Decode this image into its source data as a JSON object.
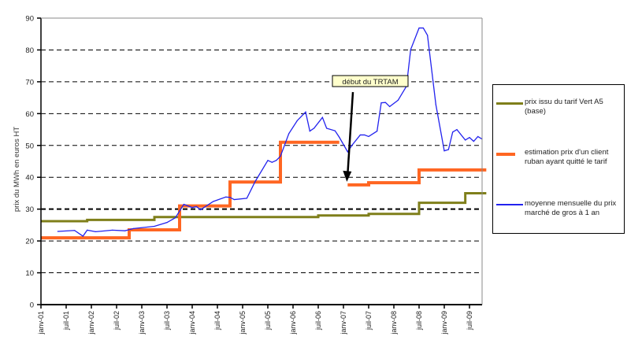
{
  "chart_data": {
    "type": "line",
    "title": "",
    "ylabel": "prix du MWh  en euros HT",
    "xlabel": "",
    "ylim": [
      0,
      90
    ],
    "yticks": [
      0,
      10,
      20,
      30,
      40,
      50,
      60,
      70,
      80,
      90
    ],
    "xlim": [
      "2001-01",
      "2009-11"
    ],
    "xticks": [
      "janv-01",
      "juil-01",
      "janv-02",
      "juil-02",
      "janv-03",
      "juil-03",
      "janv-04",
      "juil-04",
      "janv-05",
      "juil-05",
      "janv-06",
      "juil-06",
      "janv-07",
      "juil-07",
      "janv-08",
      "juil-08",
      "janv-09",
      "juil-09"
    ],
    "grid": "horizontal dashed",
    "legend_placement": "right",
    "series": [
      {
        "name": "prix issu du tarif Vert A5 (base)",
        "color": "#7f7f1a",
        "style": "step",
        "end": "2009-11",
        "steps": [
          [
            "2001-01",
            26.2
          ],
          [
            "2001-12",
            26.6
          ],
          [
            "2003-04",
            27.5
          ],
          [
            "2006-07",
            28
          ],
          [
            "2007-07",
            28.5
          ],
          [
            "2008-07",
            32
          ],
          [
            "2009-06",
            35
          ]
        ]
      },
      {
        "name": "estimation prix d'un client ruban ayant quitté le tarif",
        "color": "#ff6622",
        "style": "step",
        "segments": [
          {
            "steps": [
              [
                "2001-01",
                21
              ],
              [
                "2002-10",
                23.5
              ],
              [
                "2003-10",
                31
              ],
              [
                "2004-10",
                38.5
              ],
              [
                "2005-10",
                51
              ]
            ],
            "end": "2006-12"
          },
          {
            "steps": [
              [
                "2007-02",
                37.6
              ],
              [
                "2007-07",
                38.3
              ],
              [
                "2008-07",
                42.3
              ]
            ],
            "end": "2009-11"
          }
        ]
      },
      {
        "name": "moyenne mensuelle du prix marché de gros à 1 an",
        "color": "#2222ee",
        "style": "line",
        "points": [
          [
            "2001-05",
            23.0
          ],
          [
            "2001-09",
            23.3
          ],
          [
            "2001-11",
            21.5
          ],
          [
            "2001-12",
            23.4
          ],
          [
            "2002-02",
            22.9
          ],
          [
            "2002-06",
            23.4
          ],
          [
            "2002-09",
            23.2
          ],
          [
            "2002-11",
            23.9
          ],
          [
            "2003-04",
            24.6
          ],
          [
            "2003-07",
            25.8
          ],
          [
            "2003-09",
            27.3
          ],
          [
            "2003-11",
            31.5
          ],
          [
            "2004-01",
            30.5
          ],
          [
            "2004-02",
            30.8
          ],
          [
            "2004-03",
            29.8
          ],
          [
            "2004-06",
            32.4
          ],
          [
            "2004-09",
            33.8
          ],
          [
            "2004-10",
            33.7
          ],
          [
            "2004-11",
            33.0
          ],
          [
            "2005-02",
            33.4
          ],
          [
            "2005-04",
            38.7
          ],
          [
            "2005-07",
            45.3
          ],
          [
            "2005-08",
            44.7
          ],
          [
            "2005-09",
            45.3
          ],
          [
            "2005-10",
            46.6
          ],
          [
            "2005-12",
            53.7
          ],
          [
            "2006-02",
            57.8
          ],
          [
            "2006-04",
            60.5
          ],
          [
            "2006-05",
            54.5
          ],
          [
            "2006-06",
            55.4
          ],
          [
            "2006-08",
            58.8
          ],
          [
            "2006-09",
            55.4
          ],
          [
            "2006-11",
            54.6
          ],
          [
            "2006-12",
            52.6
          ],
          [
            "2007-02",
            48.0
          ],
          [
            "2007-03",
            50.0
          ],
          [
            "2007-05",
            53.3
          ],
          [
            "2007-06",
            53.3
          ],
          [
            "2007-07",
            52.8
          ],
          [
            "2007-09",
            54.5
          ],
          [
            "2007-10",
            63.4
          ],
          [
            "2007-11",
            63.5
          ],
          [
            "2007-12",
            62.2
          ],
          [
            "2008-02",
            64.2
          ],
          [
            "2008-04",
            68.6
          ],
          [
            "2008-05",
            80.1
          ],
          [
            "2008-07",
            86.9
          ],
          [
            "2008-08",
            86.9
          ],
          [
            "2008-09",
            84.6
          ],
          [
            "2008-11",
            62.8
          ],
          [
            "2009-01",
            48.3
          ],
          [
            "2009-02",
            48.7
          ],
          [
            "2009-03",
            54.2
          ],
          [
            "2009-04",
            55.0
          ],
          [
            "2009-06",
            51.7
          ],
          [
            "2009-07",
            52.5
          ],
          [
            "2009-08",
            51.3
          ],
          [
            "2009-09",
            52.8
          ],
          [
            "2009-10",
            52.0
          ]
        ]
      }
    ],
    "annotation": {
      "text": "début du TRTAM",
      "points_to": [
        "2007-02",
        37.6
      ]
    }
  }
}
